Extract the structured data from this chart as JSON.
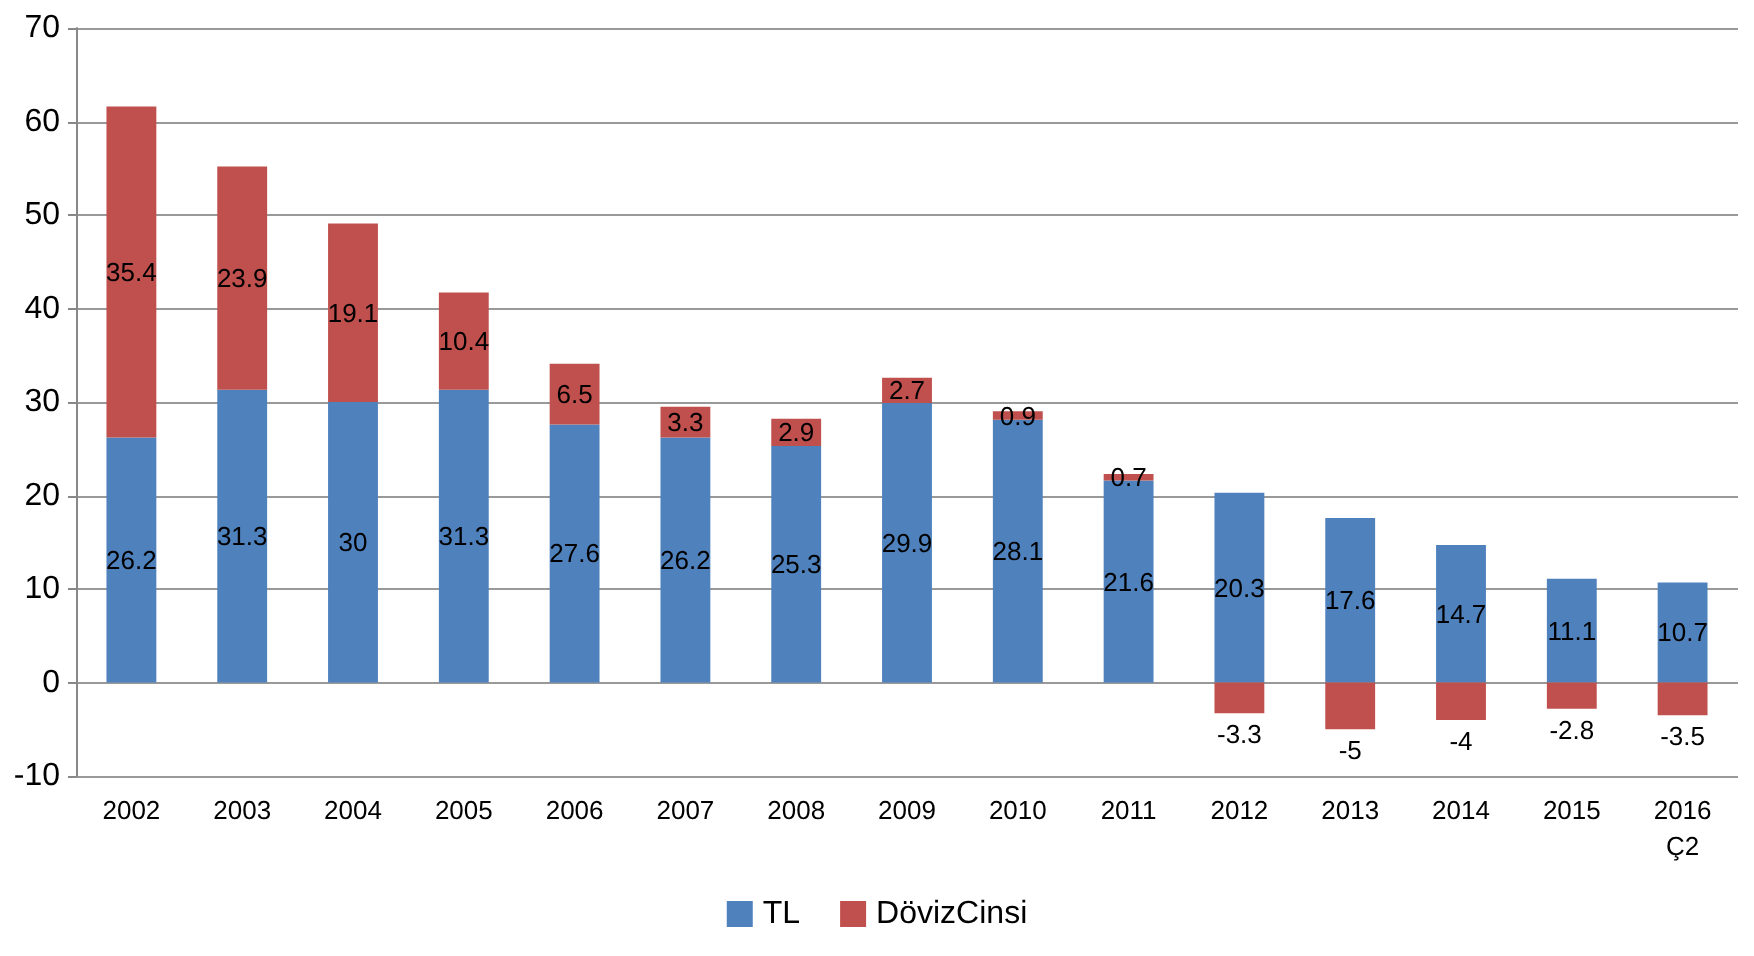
{
  "chart_data": {
    "type": "bar",
    "stacked": true,
    "categories": [
      "2002",
      "2003",
      "2004",
      "2005",
      "2006",
      "2007",
      "2008",
      "2009",
      "2010",
      "2011",
      "2012",
      "2013",
      "2014",
      "2015",
      "2016\nÇ2"
    ],
    "series": [
      {
        "name": "TL",
        "color": "#4f81bd",
        "values": [
          26.2,
          31.3,
          30,
          31.3,
          27.6,
          26.2,
          25.3,
          29.9,
          28.1,
          21.6,
          20.3,
          17.6,
          14.7,
          11.1,
          10.7
        ]
      },
      {
        "name": "DövizCinsi",
        "color": "#c0504d",
        "values": [
          35.4,
          23.9,
          19.1,
          10.4,
          6.5,
          3.3,
          2.9,
          2.7,
          0.9,
          0.7,
          -3.3,
          -5,
          -4,
          -2.8,
          -3.5
        ]
      }
    ],
    "ylim": [
      -10,
      70
    ],
    "yticks": [
      -10,
      0,
      10,
      20,
      30,
      40,
      50,
      60,
      70
    ],
    "grid": "y",
    "legend": "bottom",
    "data_labels": true
  }
}
